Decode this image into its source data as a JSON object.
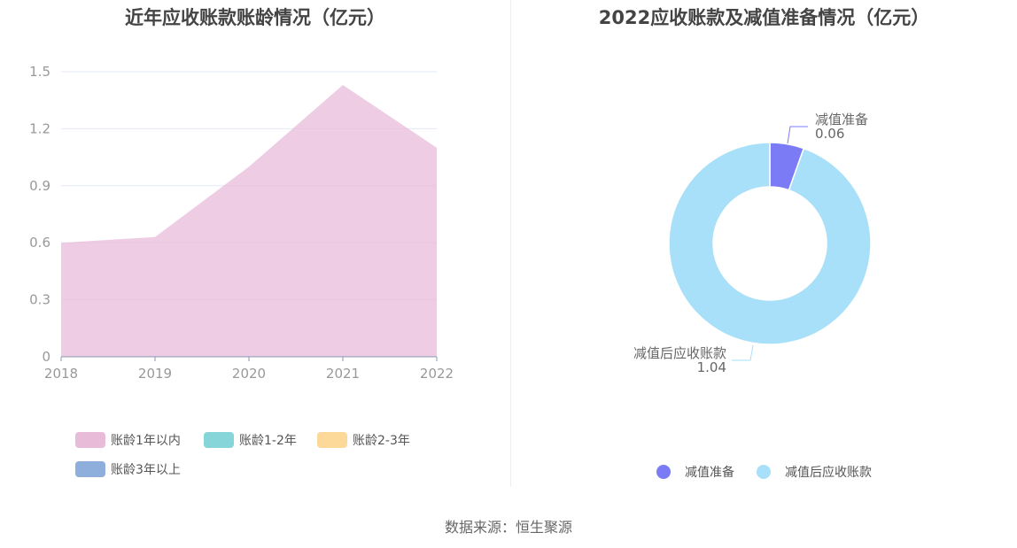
{
  "chart_data": [
    {
      "type": "area",
      "title": "近年应收账款账龄情况（亿元）",
      "categories": [
        "2018",
        "2019",
        "2020",
        "2021",
        "2022"
      ],
      "ylim": [
        0,
        1.5
      ],
      "yticks": [
        "0",
        "0.3",
        "0.6",
        "0.9",
        "1.2",
        "1.5"
      ],
      "grid": true,
      "legend_position": "bottom",
      "series": [
        {
          "name": "账龄1年以内",
          "color": "#e8bbd9",
          "values": [
            0.6,
            0.63,
            1.0,
            1.43,
            1.1
          ]
        },
        {
          "name": "账龄1-2年",
          "color": "#86d6d9",
          "values": [
            0,
            0,
            0,
            0,
            0
          ]
        },
        {
          "name": "账龄2-3年",
          "color": "#fdd999",
          "values": [
            0,
            0,
            0,
            0,
            0
          ]
        },
        {
          "name": "账龄3年以上",
          "color": "#8eaedc",
          "values": [
            0,
            0,
            0,
            0,
            0
          ]
        }
      ]
    },
    {
      "type": "pie",
      "title": "2022应收账款及减值准备情况（亿元）",
      "legend_position": "bottom",
      "slices": [
        {
          "name": "减值准备",
          "value": 0.06,
          "label": "0.06",
          "color": "#7b7cf5"
        },
        {
          "name": "减值后应收账款",
          "value": 1.04,
          "label": "1.04",
          "color": "#a8dff9"
        }
      ]
    }
  ],
  "footer": {
    "source": "数据来源：恒生聚源"
  }
}
